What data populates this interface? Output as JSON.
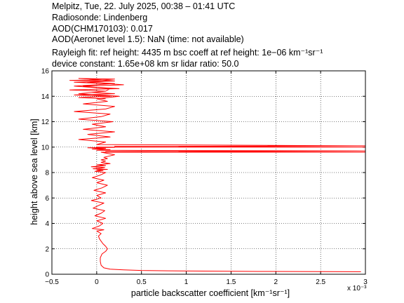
{
  "chart_data": {
    "type": "line",
    "header": {
      "line1": "Melpitz, Tue, 22. July 2025, 00:38 – 01:41 UTC",
      "line2": "Radiosonde: Lindenberg",
      "line3": "AOD(CHM170103): 0.017",
      "line4": "AOD(Aeronet level 1.5): NaN   (time: not available)",
      "rayleigh": "Rayleigh fit:     ref height: 4435 m     bsc coeff at ref height: 1e−06 km⁻¹sr⁻¹",
      "device": "device constant: 1.65e+08 km sr     lidar ratio: 50.0"
    },
    "xlabel": "particle backscatter coefficient [km⁻¹sr⁻¹]",
    "ylabel": "height above sea level [km]",
    "x_multiplier": "x 10⁻³",
    "xlim": [
      -0.5,
      3
    ],
    "ylim": [
      0,
      16
    ],
    "xticks": [
      -0.5,
      0,
      0.5,
      1,
      1.5,
      2,
      2.5,
      3
    ],
    "xticklabels": [
      "−0.5",
      "0",
      "0.5",
      "1",
      "1.5",
      "2",
      "2.5",
      "3"
    ],
    "yticks": [
      0,
      2,
      4,
      6,
      8,
      10,
      12,
      14,
      16
    ],
    "yticklabels": [
      "0",
      "2",
      "4",
      "6",
      "8",
      "10",
      "12",
      "14",
      "16"
    ],
    "grid": true,
    "line_color": "#ff0000",
    "series": [
      {
        "x": [
          2.95,
          1.8,
          1.2,
          0.8,
          0.5,
          0.3,
          0.15,
          0.08,
          0.05,
          0.04,
          0.04,
          0.06,
          0.1,
          0.12,
          0.1,
          0.07,
          0.05,
          0.03,
          0.02,
          0.05,
          0.0,
          0.08,
          -0.05,
          0.03,
          0.07,
          0.0,
          0.1,
          -0.02,
          0.05,
          0.09,
          -0.04,
          0.02,
          0.08,
          -0.06,
          0.05,
          0.0,
          0.1,
          -0.03,
          0.06,
          0.12,
          0.0,
          0.08,
          -0.05,
          0.04,
          0.1,
          -0.02,
          0.07,
          0.0,
          0.12,
          -0.04,
          0.05,
          0.09,
          -0.06,
          0.03,
          0.1,
          0.0,
          0.15,
          0.05,
          0.1,
          0.05,
          0.12,
          0.08,
          0.2,
          0.05,
          3.0,
          0.1,
          3.0,
          0.0,
          0.15,
          -0.05,
          0.1,
          -0.1,
          0.2,
          0.0,
          0.05,
          3.0,
          0.2,
          3.0,
          0.0,
          0.1,
          -0.2,
          0.15,
          -0.1,
          0.2,
          -0.15,
          0.1,
          -0.05,
          0.18,
          -0.2,
          0.05,
          0.15,
          -0.25,
          0.1,
          0.2,
          -0.15,
          0.12,
          0.0,
          0.25,
          -0.2,
          0.1,
          0.15,
          -0.25,
          0.2,
          -0.1,
          0.15,
          -0.3,
          0.1,
          0.2,
          -0.2,
          0.05,
          0.2,
          -0.25,
          0.1,
          0.3,
          -0.15,
          0.0,
          0.25,
          -0.3,
          0.1,
          -0.05,
          0.2,
          -0.25,
          0.15,
          -0.2,
          0.1
        ],
        "y": [
          0.2,
          0.22,
          0.25,
          0.27,
          0.3,
          0.35,
          0.4,
          0.5,
          0.7,
          1.0,
          1.3,
          1.6,
          1.8,
          2.0,
          2.2,
          2.4,
          2.6,
          2.8,
          3.0,
          3.2,
          3.4,
          3.5,
          3.6,
          3.8,
          4.0,
          4.2,
          4.4,
          4.6,
          4.8,
          5.0,
          5.2,
          5.4,
          5.6,
          5.8,
          6.0,
          6.2,
          6.4,
          6.6,
          6.8,
          7.0,
          7.2,
          7.4,
          7.6,
          7.8,
          8.0,
          8.1,
          8.15,
          8.2,
          8.25,
          8.3,
          8.35,
          8.4,
          8.45,
          8.5,
          8.55,
          8.6,
          8.7,
          8.8,
          8.9,
          9.0,
          9.1,
          9.2,
          9.4,
          9.6,
          9.6,
          9.65,
          9.7,
          9.75,
          9.8,
          9.85,
          9.9,
          9.95,
          9.98,
          10.0,
          10.0,
          10.0,
          10.05,
          10.1,
          10.2,
          10.4,
          10.6,
          10.8,
          11.0,
          11.2,
          11.4,
          11.6,
          11.8,
          12.0,
          12.2,
          12.4,
          12.6,
          12.8,
          13.0,
          13.2,
          13.4,
          13.6,
          13.8,
          14.0,
          14.2,
          14.4,
          14.6,
          14.8,
          15.0,
          15.1,
          15.2,
          15.25,
          15.3,
          15.35,
          15.4,
          15.3,
          15.2,
          15.1,
          15.0,
          14.9,
          14.8,
          14.7,
          14.6,
          14.5,
          14.4,
          14.3,
          14.2,
          14.1,
          14.0,
          13.9,
          13.8
        ]
      }
    ]
  }
}
